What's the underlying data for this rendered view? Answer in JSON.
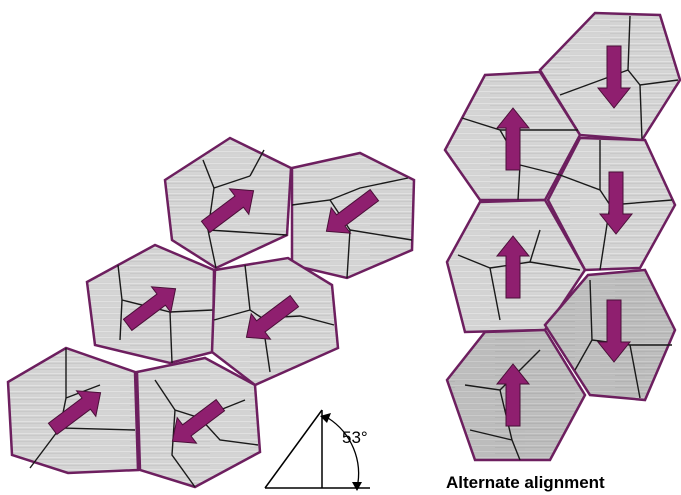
{
  "diagram": {
    "angle_label": "53°",
    "caption": "Alternate alignment",
    "colors": {
      "tile_fill_light": "#d7d7d7",
      "tile_fill_dark": "#bdbdbd",
      "tile_border": "#6d1f5f",
      "arrow_fill": "#8f1f6f",
      "arrow_stroke": "#4a0f38",
      "crack": "#1a1a1a"
    },
    "left_group": {
      "arrow_pattern": "alternating diagonal, angle between arrow and horizontal ≈ 53°",
      "tiles": [
        {
          "name": "tile-l1",
          "arrow": "up-right"
        },
        {
          "name": "tile-l2",
          "arrow": "down-left"
        },
        {
          "name": "tile-l3",
          "arrow": "up-right"
        },
        {
          "name": "tile-l4",
          "arrow": "down-left"
        },
        {
          "name": "tile-l5",
          "arrow": "up-right"
        },
        {
          "name": "tile-l6",
          "arrow": "down-left"
        }
      ]
    },
    "right_group": {
      "arrow_pattern": "alternating vertical",
      "tiles": [
        {
          "name": "tile-r1",
          "arrow": "down"
        },
        {
          "name": "tile-r2",
          "arrow": "up"
        },
        {
          "name": "tile-r3",
          "arrow": "down"
        },
        {
          "name": "tile-r4",
          "arrow": "up"
        },
        {
          "name": "tile-r5",
          "arrow": "down"
        },
        {
          "name": "tile-r6",
          "arrow": "up"
        }
      ]
    }
  }
}
